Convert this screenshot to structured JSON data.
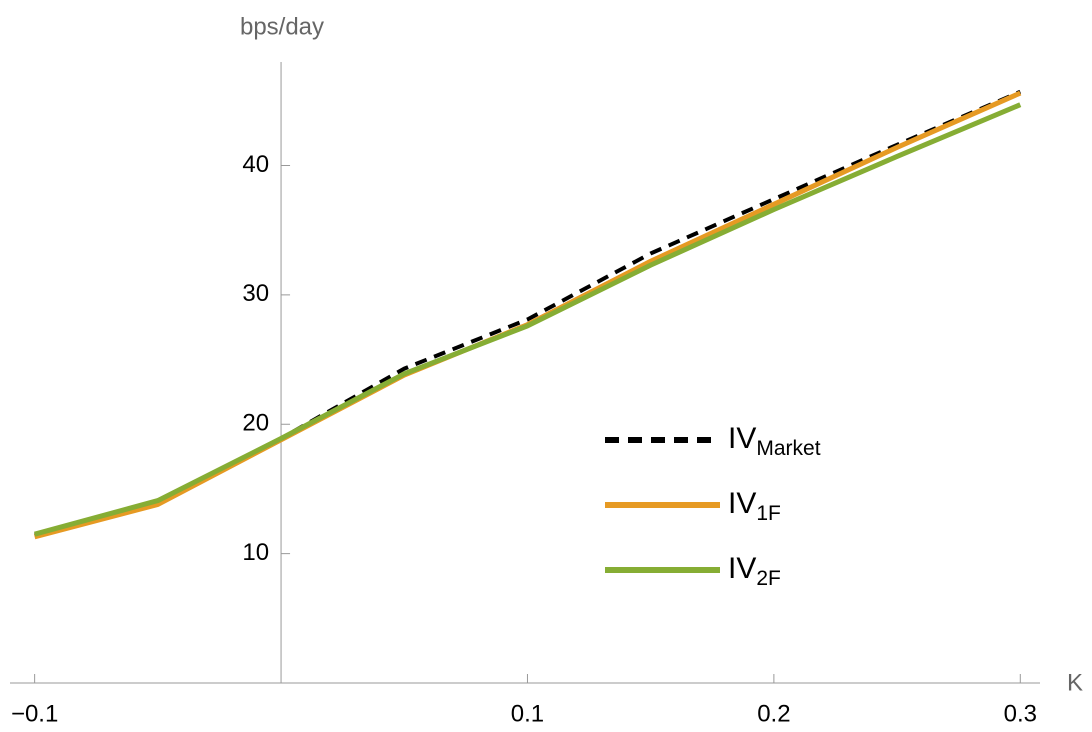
{
  "chart_data": {
    "type": "line",
    "y_label": "bps/day",
    "x_label": "K",
    "x": [
      -0.1,
      -0.05,
      0,
      0.05,
      0.1,
      0.15,
      0.2,
      0.25,
      0.3
    ],
    "series": [
      {
        "name": "IV",
        "subscript": "Market",
        "color": "#000000",
        "style": "dashed",
        "values": [
          11.4,
          14.0,
          18.9,
          24.3,
          28.1,
          33.2,
          37.4,
          41.6,
          45.7
        ]
      },
      {
        "name": "IV",
        "subscript": "1F",
        "color": "#e69a23",
        "style": "solid",
        "values": [
          11.3,
          13.8,
          18.8,
          23.8,
          27.7,
          32.6,
          37.0,
          41.4,
          45.6
        ]
      },
      {
        "name": "IV",
        "subscript": "2F",
        "color": "#86ad34",
        "style": "solid",
        "values": [
          11.5,
          14.1,
          18.9,
          23.9,
          27.6,
          32.3,
          36.6,
          40.7,
          44.7
        ]
      }
    ],
    "xlim": [
      -0.11,
      0.308
    ],
    "ylim": [
      0,
      48
    ],
    "xticks": [
      {
        "value": -0.1,
        "label": "−0.1"
      },
      0.1,
      0.2,
      0.3
    ],
    "yticks": [
      10,
      20,
      30,
      40
    ]
  }
}
